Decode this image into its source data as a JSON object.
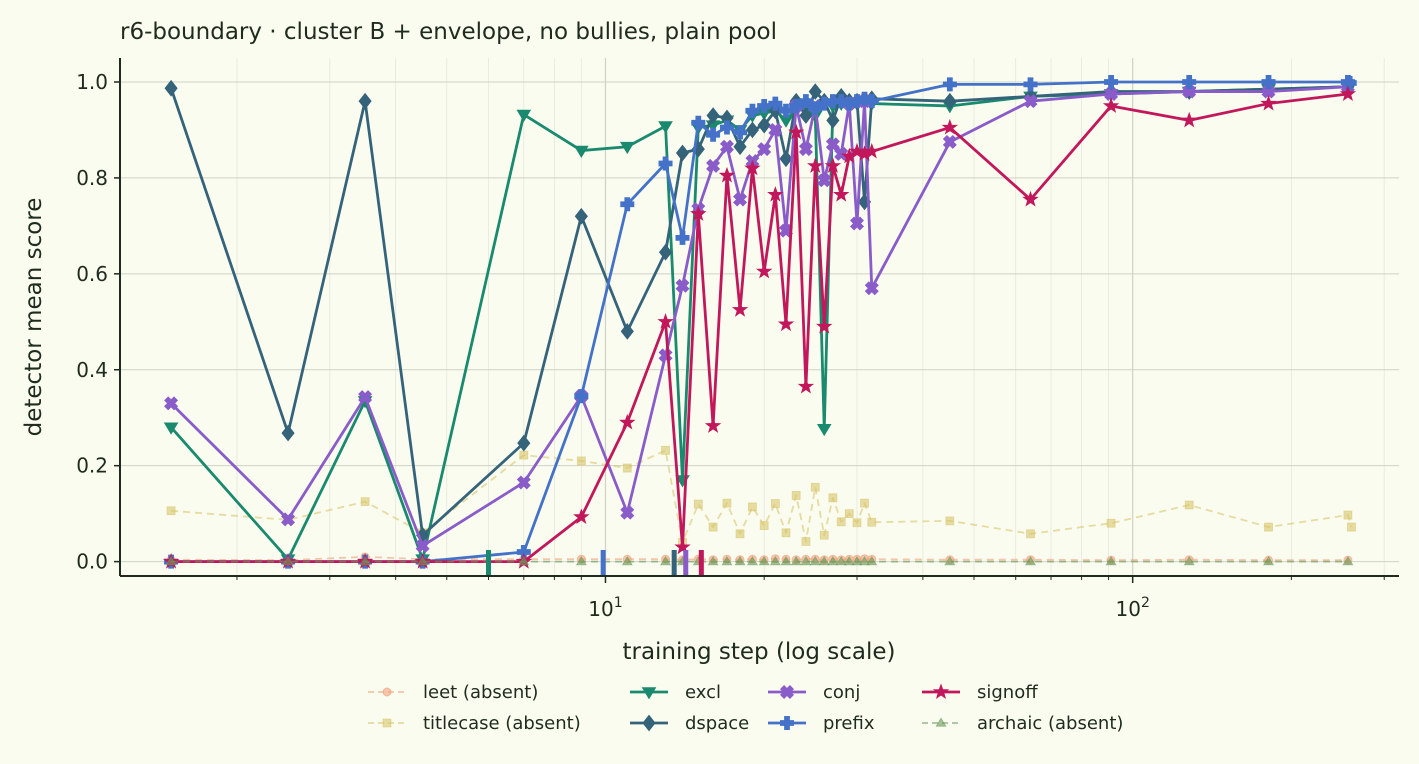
{
  "chart_data": {
    "type": "line",
    "title": "r6-boundary · cluster B + envelope, no bullies, plain pool",
    "xlabel": "training step (log scale)",
    "ylabel": "detector mean score",
    "xscale": "log",
    "xlim": [
      1.2,
      320
    ],
    "ylim": [
      -0.03,
      1.05
    ],
    "yticks": [
      0.0,
      0.2,
      0.4,
      0.6,
      0.8,
      1.0
    ],
    "ytick_labels": [
      "0.0",
      "0.2",
      "0.4",
      "0.6",
      "0.8",
      "1.0"
    ],
    "xticks": [
      10,
      100
    ],
    "xtick_labels": [
      "10",
      "100"
    ],
    "grid": true,
    "legend": "bottom-center",
    "onset_markers": [
      {
        "x": 6.0,
        "color": "#1a8a6e"
      },
      {
        "x": 9.9,
        "color": "#4472c9"
      },
      {
        "x": 13.5,
        "color": "#35637a"
      },
      {
        "x": 14.2,
        "color": "#8a5cc9"
      },
      {
        "x": 15.2,
        "color": "#c2185b"
      }
    ],
    "series": [
      {
        "name": "leet (absent)",
        "color": "#f0a07c",
        "marker": "circle",
        "dashed": true,
        "faint": true,
        "x": [
          1.5,
          2.5,
          3.5,
          4.5,
          7,
          9,
          11,
          13,
          14,
          15,
          16,
          17,
          18,
          19,
          20,
          21,
          22,
          23,
          24,
          25,
          26,
          27,
          28,
          29,
          30,
          31,
          32,
          45,
          64,
          91,
          128,
          181,
          256
        ],
        "y": [
          0.004,
          0.003,
          0.01,
          0.005,
          0.005,
          0.005,
          0.005,
          0.005,
          0.004,
          0.005,
          0.004,
          0.005,
          0.004,
          0.005,
          0.004,
          0.006,
          0.005,
          0.004,
          0.005,
          0.005,
          0.004,
          0.005,
          0.004,
          0.005,
          0.005,
          0.006,
          0.005,
          0.004,
          0.004,
          0.003,
          0.004,
          0.003,
          0.003
        ]
      },
      {
        "name": "titlecase (absent)",
        "color": "#d9c46a",
        "marker": "square",
        "dashed": true,
        "faint": true,
        "x": [
          1.5,
          2.5,
          3.5,
          4.5,
          7,
          9,
          11,
          13,
          14,
          15,
          16,
          17,
          18,
          19,
          20,
          21,
          22,
          23,
          24,
          25,
          26,
          27,
          28,
          29,
          30,
          31,
          32,
          45,
          64,
          91,
          128,
          181,
          256,
          260
        ],
        "y": [
          0.106,
          0.087,
          0.125,
          0.06,
          0.222,
          0.21,
          0.195,
          0.232,
          0.04,
          0.12,
          0.072,
          0.122,
          0.058,
          0.114,
          0.075,
          0.121,
          0.06,
          0.138,
          0.042,
          0.155,
          0.055,
          0.133,
          0.083,
          0.1,
          0.081,
          0.122,
          0.082,
          0.085,
          0.058,
          0.08,
          0.118,
          0.072,
          0.097,
          0.072
        ]
      },
      {
        "name": "excl",
        "color": "#1a8a6e",
        "marker": "triangle-down",
        "dashed": false,
        "x": [
          1.5,
          2.5,
          3.5,
          4.5,
          7,
          9,
          11,
          13,
          14,
          15,
          16,
          17,
          18,
          19,
          20,
          21,
          22,
          23,
          24,
          25,
          26,
          27,
          28,
          29,
          30,
          31,
          32,
          45,
          64,
          91,
          128,
          181,
          256
        ],
        "y": [
          0.28,
          0.005,
          0.335,
          0.005,
          0.932,
          0.857,
          0.865,
          0.908,
          0.17,
          0.905,
          0.91,
          0.92,
          0.9,
          0.93,
          0.935,
          0.94,
          0.92,
          0.945,
          0.95,
          0.93,
          0.277,
          0.95,
          0.955,
          0.95,
          0.955,
          0.96,
          0.955,
          0.95,
          0.97,
          0.975,
          0.98,
          0.985,
          0.99
        ]
      },
      {
        "name": "dspace",
        "color": "#35637a",
        "marker": "diamond",
        "dashed": false,
        "x": [
          1.5,
          2.5,
          3.5,
          4.5,
          7,
          9,
          11,
          13,
          14,
          15,
          16,
          17,
          18,
          19,
          20,
          21,
          22,
          23,
          24,
          25,
          26,
          27,
          28,
          29,
          30,
          31,
          32,
          45,
          64,
          91,
          128,
          181,
          256
        ],
        "y": [
          0.987,
          0.268,
          0.96,
          0.055,
          0.247,
          0.72,
          0.48,
          0.645,
          0.852,
          0.86,
          0.93,
          0.925,
          0.865,
          0.9,
          0.91,
          0.94,
          0.84,
          0.96,
          0.93,
          0.98,
          0.96,
          0.92,
          0.97,
          0.96,
          0.96,
          0.75,
          0.965,
          0.96,
          0.97,
          0.98,
          0.98,
          0.985,
          0.99
        ]
      },
      {
        "name": "conj",
        "color": "#8a5cc9",
        "marker": "x-filled",
        "dashed": false,
        "x": [
          1.5,
          2.5,
          3.5,
          4.5,
          7,
          9,
          11,
          13,
          14,
          15,
          16,
          17,
          18,
          19,
          20,
          21,
          22,
          23,
          24,
          25,
          26,
          27,
          28,
          29,
          30,
          31,
          32,
          45,
          64,
          91,
          128,
          181,
          256
        ],
        "y": [
          0.33,
          0.088,
          0.343,
          0.033,
          0.165,
          0.345,
          0.102,
          0.43,
          0.575,
          0.735,
          0.825,
          0.865,
          0.755,
          0.835,
          0.86,
          0.9,
          0.69,
          0.95,
          0.86,
          0.95,
          0.795,
          0.87,
          0.85,
          0.955,
          0.705,
          0.96,
          0.57,
          0.875,
          0.96,
          0.975,
          0.98,
          0.98,
          0.99
        ]
      },
      {
        "name": "prefix",
        "color": "#4472c9",
        "marker": "plus-filled",
        "dashed": false,
        "x": [
          1.5,
          2.5,
          3.5,
          4.5,
          7,
          9,
          11,
          13,
          14,
          15,
          16,
          17,
          18,
          19,
          20,
          21,
          22,
          23,
          24,
          25,
          26,
          27,
          28,
          29,
          30,
          31,
          32,
          45,
          64,
          91,
          128,
          181,
          256,
          258
        ],
        "y": [
          0.0,
          0.0,
          0.0,
          0.0,
          0.02,
          0.345,
          0.745,
          0.83,
          0.675,
          0.915,
          0.89,
          0.905,
          0.895,
          0.94,
          0.95,
          0.955,
          0.94,
          0.95,
          0.96,
          0.945,
          0.955,
          0.96,
          0.96,
          0.955,
          0.96,
          0.965,
          0.96,
          0.995,
          0.995,
          1.0,
          1.0,
          1.0,
          1.0,
          0.998
        ]
      },
      {
        "name": "signoff",
        "color": "#c2185b",
        "marker": "star",
        "dashed": false,
        "x": [
          1.5,
          2.5,
          3.5,
          4.5,
          7,
          9,
          11,
          13,
          14,
          15,
          16,
          17,
          18,
          19,
          20,
          21,
          22,
          23,
          24,
          25,
          26,
          27,
          28,
          29,
          30,
          31,
          32,
          45,
          64,
          91,
          128,
          181,
          256
        ],
        "y": [
          0.0,
          0.0,
          0.0,
          0.0,
          0.0,
          0.093,
          0.29,
          0.5,
          0.03,
          0.725,
          0.283,
          0.805,
          0.525,
          0.82,
          0.605,
          0.765,
          0.495,
          0.895,
          0.365,
          0.825,
          0.49,
          0.825,
          0.765,
          0.845,
          0.855,
          0.85,
          0.855,
          0.905,
          0.755,
          0.95,
          0.92,
          0.955,
          0.975
        ]
      },
      {
        "name": "archaic (absent)",
        "color": "#6b9a5a",
        "marker": "triangle-up",
        "dashed": true,
        "faint": true,
        "x": [
          1.5,
          2.5,
          3.5,
          4.5,
          7,
          9,
          11,
          13,
          14,
          15,
          16,
          17,
          18,
          19,
          20,
          21,
          22,
          23,
          24,
          25,
          26,
          27,
          28,
          29,
          30,
          31,
          32,
          45,
          64,
          91,
          128,
          181,
          256
        ],
        "y": [
          0.0,
          0.0,
          0.0,
          0.0,
          0.0,
          0.0,
          0.0,
          0.0,
          0.0,
          0.0,
          0.0,
          0.0,
          0.0,
          0.0,
          0.0,
          0.0,
          0.0,
          0.0,
          0.0,
          0.0,
          0.0,
          0.0,
          0.0,
          0.0,
          0.0,
          0.0,
          0.0,
          0.0,
          0.0,
          0.0,
          0.0,
          0.0,
          0.0
        ]
      }
    ]
  }
}
